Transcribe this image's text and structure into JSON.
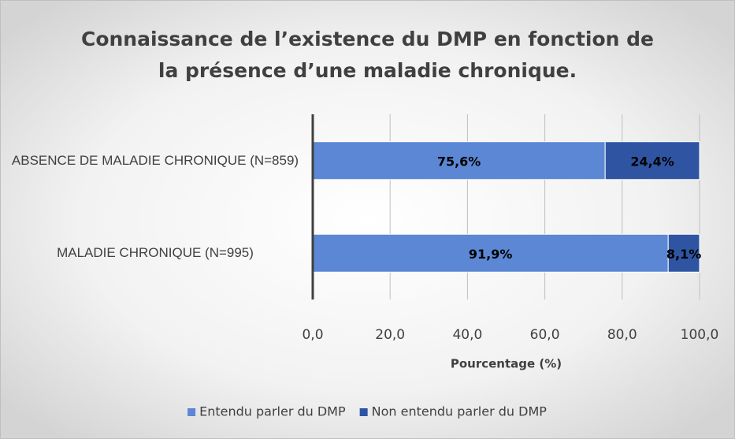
{
  "chart_data": {
    "type": "stacked_bar_horizontal",
    "title": "Connaissance de l’existence du DMP en fonction de la présence d’une maladie chronique.",
    "categories": [
      "ABSENCE DE MALADIE CHRONIQUE (N=859)",
      "MALADIE CHRONIQUE (N=995)"
    ],
    "series": [
      {
        "name": "Entendu parler du DMP",
        "color": "#5b87d4",
        "values": [
          75.6,
          91.9
        ],
        "value_labels": [
          "75,6%",
          "91,9%"
        ]
      },
      {
        "name": "Non entendu parler du DMP",
        "color": "#2f55a2",
        "values": [
          24.4,
          8.1
        ],
        "value_labels": [
          "24,4%",
          "8,1%"
        ]
      }
    ],
    "xlim": [
      0,
      100
    ],
    "xticks": [
      {
        "value": 0,
        "label": "0,0"
      },
      {
        "value": 20,
        "label": "20,0"
      },
      {
        "value": 40,
        "label": "40,0"
      },
      {
        "value": 60,
        "label": "60,0"
      },
      {
        "value": 80,
        "label": "80,0"
      },
      {
        "value": 100,
        "label": "100,0"
      }
    ],
    "xlabel": "Pourcentage (%)",
    "grid": true,
    "legend": "bottom"
  }
}
